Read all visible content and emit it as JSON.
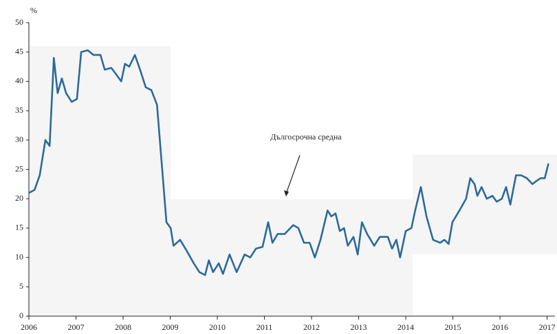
{
  "chart_data": {
    "type": "line",
    "y_unit_label": "%",
    "annotation": "Дългосрочна средна",
    "x": [
      2006.0,
      2006.12,
      2006.23,
      2006.35,
      2006.44,
      2006.53,
      2006.61,
      2006.7,
      2006.79,
      2006.91,
      2007.02,
      2007.11,
      2007.25,
      2007.37,
      2007.52,
      2007.61,
      2007.75,
      2007.87,
      2007.96,
      2008.04,
      2008.13,
      2008.25,
      2008.36,
      2008.48,
      2008.6,
      2008.72,
      2008.83,
      2008.92,
      2009.01,
      2009.07,
      2009.21,
      2009.36,
      2009.5,
      2009.62,
      2009.74,
      2009.82,
      2009.91,
      2010.03,
      2010.12,
      2010.26,
      2010.41,
      2010.58,
      2010.7,
      2010.82,
      2010.96,
      2011.08,
      2011.17,
      2011.28,
      2011.43,
      2011.61,
      2011.72,
      2011.84,
      2011.96,
      2012.07,
      2012.19,
      2012.34,
      2012.42,
      2012.51,
      2012.6,
      2012.69,
      2012.77,
      2012.89,
      2012.98,
      2013.07,
      2013.18,
      2013.33,
      2013.45,
      2013.62,
      2013.71,
      2013.8,
      2013.88,
      2014.0,
      2014.12,
      2014.2,
      2014.32,
      2014.44,
      2014.58,
      2014.73,
      2014.82,
      2014.91,
      2014.99,
      2015.14,
      2015.28,
      2015.37,
      2015.46,
      2015.52,
      2015.61,
      2015.72,
      2015.84,
      2015.93,
      2016.04,
      2016.13,
      2016.22,
      2016.34,
      2016.45,
      2016.57,
      2016.69,
      2016.77,
      2016.86,
      2016.95,
      2017.03
    ],
    "series": [
      {
        "color": "#2b6a98",
        "values": [
          21,
          21.5,
          24,
          30,
          29,
          44,
          38,
          40.5,
          38,
          36.5,
          37,
          45,
          45.3,
          44.5,
          44.5,
          42,
          42.3,
          41,
          40,
          43,
          42.5,
          44.5,
          42,
          39,
          38.5,
          36,
          25,
          16,
          15,
          12,
          13,
          11,
          9,
          7.5,
          7,
          9.5,
          7.5,
          9,
          7.2,
          10.5,
          7.5,
          10.5,
          10,
          11.5,
          11.8,
          16,
          12.5,
          14,
          14,
          15.5,
          15,
          12.5,
          12.5,
          10,
          13,
          18,
          17,
          17.5,
          14.5,
          15,
          12,
          13.5,
          10.5,
          16,
          14,
          12,
          13.5,
          13.5,
          11.5,
          13,
          10,
          14.5,
          15,
          18,
          22,
          17,
          13,
          12.5,
          13,
          12.3,
          16,
          18,
          20,
          23.5,
          22.5,
          20.5,
          22,
          20,
          20.5,
          19.5,
          20,
          22,
          19,
          24,
          24,
          23.5,
          22.5,
          23,
          23.5,
          23.5,
          26
        ]
      }
    ],
    "xlim": [
      2006,
      2017.05
    ],
    "xticks": [
      2006,
      2007,
      2008,
      2009,
      2010,
      2011,
      2012,
      2013,
      2014,
      2015,
      2016,
      2017
    ],
    "ylim": [
      0,
      50
    ],
    "yticks": [
      0,
      5,
      10,
      15,
      20,
      25,
      30,
      35,
      40,
      45,
      50
    ]
  }
}
